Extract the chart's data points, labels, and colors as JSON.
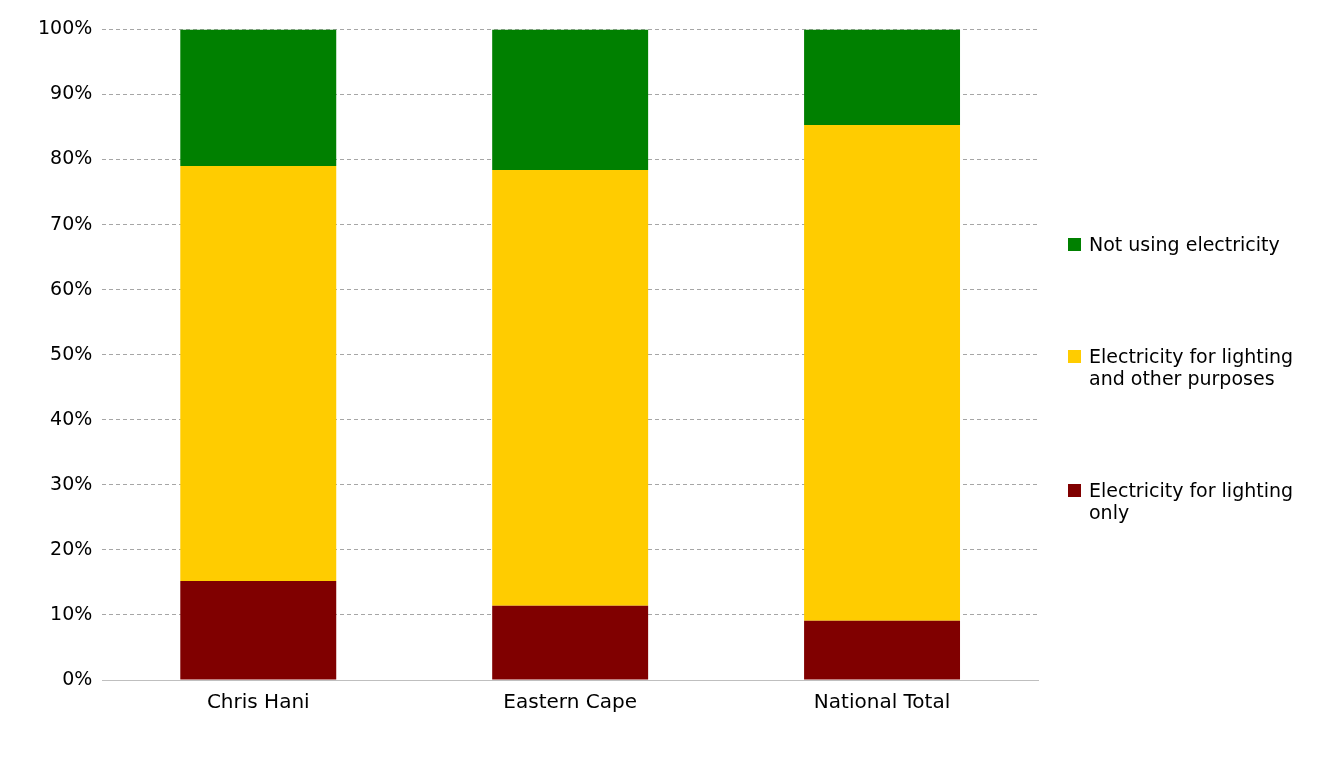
{
  "chart_data": {
    "type": "bar",
    "stacked": true,
    "categories": [
      "Chris Hani",
      "Eastern Cape",
      "National Total"
    ],
    "series": [
      {
        "name": "Electricity for lighting only",
        "color": "#800000",
        "values": [
          15.2,
          11.4,
          9.1
        ]
      },
      {
        "name": "Electricity for lighting and other purposes",
        "color": "#ffcc00",
        "values": [
          63.8,
          67.0,
          76.2
        ]
      },
      {
        "name": "Not using electricity",
        "color": "#008000",
        "values": [
          21.0,
          21.6,
          14.7
        ]
      }
    ],
    "ylim": [
      0,
      100
    ],
    "yticks": [
      {
        "value": 0,
        "label": "0%"
      },
      {
        "value": 10,
        "label": "10%"
      },
      {
        "value": 20,
        "label": "20%"
      },
      {
        "value": 30,
        "label": "30%"
      },
      {
        "value": 40,
        "label": "40%"
      },
      {
        "value": 50,
        "label": "50%"
      },
      {
        "value": 60,
        "label": "60%"
      },
      {
        "value": 70,
        "label": "70%"
      },
      {
        "value": 80,
        "label": "80%"
      },
      {
        "value": 90,
        "label": "90%"
      },
      {
        "value": 100,
        "label": "100%"
      }
    ],
    "grid": "y",
    "legend": "right"
  }
}
